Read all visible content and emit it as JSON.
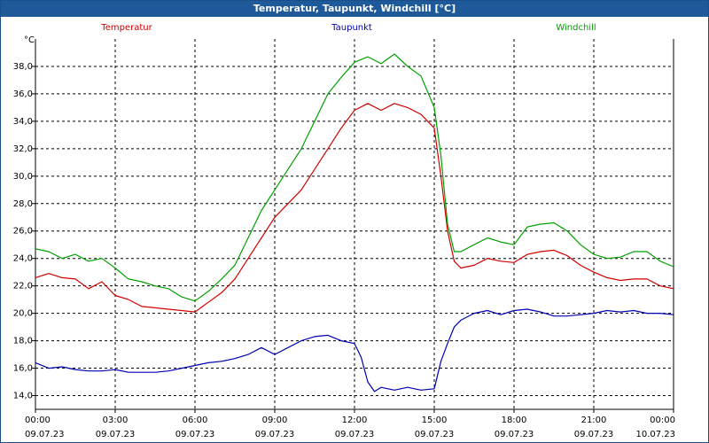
{
  "window": {
    "title": "Temperatur, Taupunkt, Windchill [°C]"
  },
  "chart_data": {
    "type": "line",
    "title": "Temperatur, Taupunkt, Windchill [°C]",
    "ylabel": "°C",
    "ylim": [
      13,
      40
    ],
    "grid": true,
    "legend_position": "top",
    "x_ticks": [
      {
        "hour": 0,
        "time": "00:00",
        "date": "09.07.23"
      },
      {
        "hour": 3,
        "time": "03:00",
        "date": "09.07.23"
      },
      {
        "hour": 6,
        "time": "06:00",
        "date": "09.07.23"
      },
      {
        "hour": 9,
        "time": "09:00",
        "date": "09.07.23"
      },
      {
        "hour": 12,
        "time": "12:00",
        "date": "09.07.23"
      },
      {
        "hour": 15,
        "time": "15:00",
        "date": "09.07.23"
      },
      {
        "hour": 18,
        "time": "18:00",
        "date": "09.07.23"
      },
      {
        "hour": 21,
        "time": "21:00",
        "date": "09.07.23"
      },
      {
        "hour": 24,
        "time": "00:00",
        "date": "10.07.23"
      }
    ],
    "y_ticks": [
      "14,0",
      "16,0",
      "18,0",
      "20,0",
      "22,0",
      "24,0",
      "26,0",
      "28,0",
      "30,0",
      "32,0",
      "34,0",
      "36,0",
      "38,0"
    ],
    "y_tick_values": [
      14,
      16,
      18,
      20,
      22,
      24,
      26,
      28,
      30,
      32,
      34,
      36,
      38
    ],
    "series": [
      {
        "name": "Temperatur",
        "color": "#d00000",
        "x": [
          0,
          0.5,
          1,
          1.5,
          2,
          2.5,
          3,
          3.5,
          4,
          4.5,
          5,
          5.5,
          6,
          6.5,
          7,
          7.5,
          8,
          8.5,
          9,
          9.5,
          10,
          10.5,
          11,
          11.5,
          12,
          12.5,
          13,
          13.5,
          14,
          14.5,
          15,
          15.25,
          15.5,
          15.75,
          16,
          16.5,
          17,
          17.5,
          18,
          18.5,
          19,
          19.5,
          20,
          20.5,
          21,
          21.5,
          22,
          22.5,
          23,
          23.5,
          24
        ],
        "y": [
          22.6,
          22.9,
          22.6,
          22.5,
          21.8,
          22.3,
          21.3,
          21.0,
          20.5,
          20.4,
          20.3,
          20.2,
          20.1,
          20.8,
          21.5,
          22.5,
          24.0,
          25.5,
          27.0,
          28.0,
          29.0,
          30.5,
          32.0,
          33.5,
          34.8,
          35.3,
          34.8,
          35.3,
          35.0,
          34.5,
          33.5,
          30.0,
          26.0,
          23.8,
          23.3,
          23.5,
          24.0,
          23.8,
          23.7,
          24.3,
          24.5,
          24.6,
          24.2,
          23.5,
          23.0,
          22.6,
          22.4,
          22.5,
          22.5,
          22.0,
          21.8
        ]
      },
      {
        "name": "Taupunkt",
        "color": "#0000b0",
        "x": [
          0,
          0.5,
          1,
          1.5,
          2,
          2.5,
          3,
          3.5,
          4,
          4.5,
          5,
          5.5,
          6,
          6.5,
          7,
          7.5,
          8,
          8.5,
          9,
          9.5,
          10,
          10.5,
          11,
          11.5,
          12,
          12.25,
          12.5,
          12.75,
          13,
          13.5,
          14,
          14.5,
          15,
          15.25,
          15.5,
          15.75,
          16,
          16.5,
          17,
          17.5,
          18,
          18.5,
          19,
          19.5,
          20,
          20.5,
          21,
          21.5,
          22,
          22.5,
          23,
          23.5,
          24
        ],
        "y": [
          16.4,
          16.0,
          16.1,
          15.9,
          15.8,
          15.8,
          15.9,
          15.7,
          15.7,
          15.7,
          15.8,
          16.0,
          16.2,
          16.4,
          16.5,
          16.7,
          17.0,
          17.5,
          17.0,
          17.5,
          18.0,
          18.3,
          18.4,
          18.0,
          17.8,
          16.8,
          15.0,
          14.3,
          14.6,
          14.4,
          14.6,
          14.4,
          14.5,
          16.5,
          17.8,
          19.0,
          19.5,
          20.0,
          20.2,
          19.9,
          20.2,
          20.3,
          20.1,
          19.8,
          19.8,
          19.9,
          20.0,
          20.2,
          20.1,
          20.2,
          20.0,
          20.0,
          19.9
        ]
      },
      {
        "name": "Windchill",
        "color": "#00a000",
        "x": [
          0,
          0.5,
          1,
          1.5,
          2,
          2.5,
          3,
          3.5,
          4,
          4.5,
          5,
          5.5,
          6,
          6.5,
          7,
          7.5,
          8,
          8.5,
          9,
          9.5,
          10,
          10.5,
          11,
          11.5,
          12,
          12.5,
          13,
          13.5,
          14,
          14.5,
          15,
          15.25,
          15.5,
          15.75,
          16,
          16.5,
          17,
          17.5,
          18,
          18.5,
          19,
          19.5,
          20,
          20.5,
          21,
          21.5,
          22,
          22.5,
          23,
          23.5,
          24
        ],
        "y": [
          24.7,
          24.5,
          24.0,
          24.3,
          23.8,
          24.0,
          23.3,
          22.5,
          22.3,
          22.0,
          21.8,
          21.2,
          20.9,
          21.6,
          22.5,
          23.5,
          25.5,
          27.5,
          29.0,
          30.5,
          32.0,
          34.0,
          36.0,
          37.2,
          38.3,
          38.7,
          38.2,
          38.9,
          38.0,
          37.3,
          35.0,
          31.5,
          26.5,
          24.5,
          24.5,
          25.0,
          25.5,
          25.2,
          25.0,
          26.3,
          26.5,
          26.6,
          26.0,
          25.0,
          24.3,
          24.0,
          24.1,
          24.5,
          24.5,
          23.8,
          23.4
        ]
      }
    ]
  }
}
